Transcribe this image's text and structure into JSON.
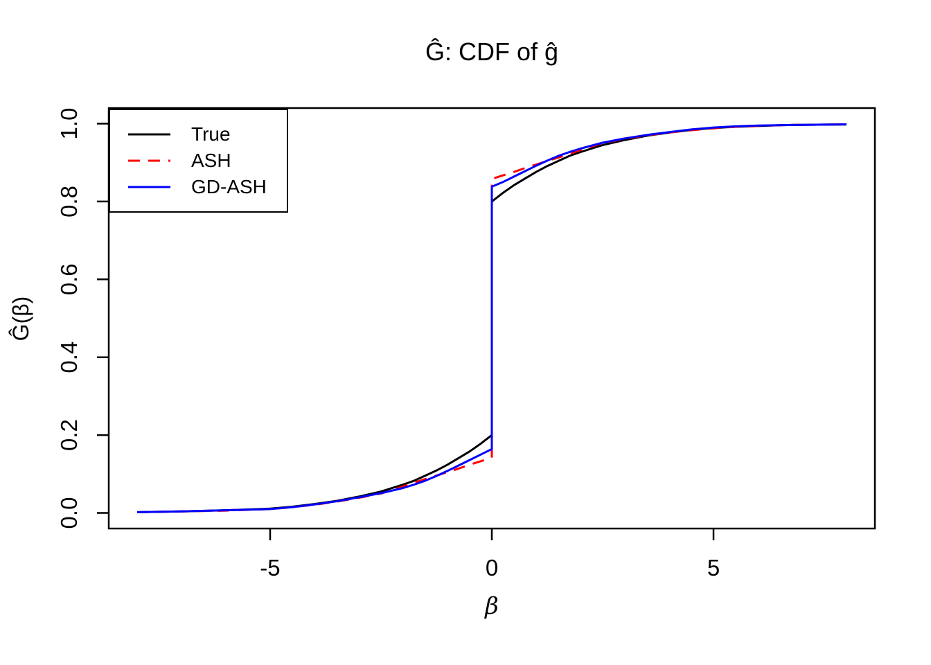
{
  "title": "Ĝ: CDF of ĝ",
  "xlabel": "β",
  "ylabel": "Ĝ(β)",
  "axes": {
    "x_ticks": [
      {
        "value": -5,
        "label": "-5"
      },
      {
        "value": 0,
        "label": "0"
      },
      {
        "value": 5,
        "label": "5"
      }
    ],
    "y_ticks": [
      {
        "value": 0.0,
        "label": "0.0"
      },
      {
        "value": 0.2,
        "label": "0.2"
      },
      {
        "value": 0.4,
        "label": "0.4"
      },
      {
        "value": 0.6,
        "label": "0.6"
      },
      {
        "value": 0.8,
        "label": "0.8"
      },
      {
        "value": 1.0,
        "label": "1.0"
      }
    ]
  },
  "legend": {
    "position": "topleft",
    "items": [
      {
        "label": "True",
        "color": "#000000",
        "style": "solid"
      },
      {
        "label": "ASH",
        "color": "#FF0000",
        "style": "dashed"
      },
      {
        "label": "GD-ASH",
        "color": "#0000FF",
        "style": "solid"
      }
    ]
  },
  "chart_data": {
    "type": "line",
    "title": "Ĝ: CDF of ĝ",
    "xlabel": "β",
    "ylabel": "Ĝ(β)",
    "xlim": [
      -8.64,
      8.64
    ],
    "ylim": [
      -0.04,
      1.04
    ],
    "x_data_range": [
      -8,
      8
    ],
    "grid": false,
    "description": "Three CDF curves with a jump discontinuity (point mass) at beta = 0",
    "jump_at_zero": {
      "True": {
        "left": 0.2,
        "right": 0.8
      },
      "ASH": {
        "left": 0.142,
        "right": 0.858
      },
      "GD-ASH": {
        "left": 0.164,
        "right": 0.838
      }
    },
    "series": [
      {
        "name": "True",
        "color": "#000000",
        "dash": "solid",
        "points": [
          [
            -8,
            0.002
          ],
          [
            -7,
            0.004
          ],
          [
            -6,
            0.007
          ],
          [
            -5,
            0.011
          ],
          [
            -4.5,
            0.016
          ],
          [
            -4,
            0.023
          ],
          [
            -3.5,
            0.031
          ],
          [
            -3,
            0.042
          ],
          [
            -2.5,
            0.055
          ],
          [
            -2,
            0.073
          ],
          [
            -1.75,
            0.083
          ],
          [
            -1.5,
            0.096
          ],
          [
            -1.25,
            0.109
          ],
          [
            -1,
            0.124
          ],
          [
            -0.75,
            0.141
          ],
          [
            -0.5,
            0.158
          ],
          [
            -0.25,
            0.178
          ],
          [
            0,
            0.2
          ],
          [
            0,
            0.8
          ],
          [
            0.25,
            0.822
          ],
          [
            0.5,
            0.842
          ],
          [
            0.75,
            0.859
          ],
          [
            1,
            0.876
          ],
          [
            1.25,
            0.891
          ],
          [
            1.5,
            0.904
          ],
          [
            1.75,
            0.917
          ],
          [
            2,
            0.927
          ],
          [
            2.5,
            0.945
          ],
          [
            3,
            0.958
          ],
          [
            3.5,
            0.969
          ],
          [
            4,
            0.977
          ],
          [
            4.5,
            0.984
          ],
          [
            5,
            0.989
          ],
          [
            5.5,
            0.992
          ],
          [
            6,
            0.994
          ],
          [
            6.5,
            0.996
          ],
          [
            7,
            0.997
          ],
          [
            7.5,
            0.9975
          ],
          [
            8,
            0.998
          ]
        ]
      },
      {
        "name": "ASH",
        "color": "#FF0000",
        "dash": "dashed",
        "points": [
          [
            -8,
            0.002
          ],
          [
            -7,
            0.004
          ],
          [
            -6,
            0.006
          ],
          [
            -5,
            0.01
          ],
          [
            -4.5,
            0.015
          ],
          [
            -4,
            0.021
          ],
          [
            -3.5,
            0.029
          ],
          [
            -3,
            0.039
          ],
          [
            -2.5,
            0.05
          ],
          [
            -2,
            0.068
          ],
          [
            -1.75,
            0.078
          ],
          [
            -1.5,
            0.087
          ],
          [
            -1.25,
            0.096
          ],
          [
            -1,
            0.105
          ],
          [
            -0.75,
            0.114
          ],
          [
            -0.5,
            0.124
          ],
          [
            -0.25,
            0.133
          ],
          [
            0,
            0.142
          ],
          [
            0,
            0.858
          ],
          [
            0.25,
            0.867
          ],
          [
            0.5,
            0.876
          ],
          [
            0.75,
            0.886
          ],
          [
            1,
            0.895
          ],
          [
            1.25,
            0.904
          ],
          [
            1.5,
            0.913
          ],
          [
            1.75,
            0.922
          ],
          [
            2,
            0.932
          ],
          [
            2.5,
            0.95
          ],
          [
            3,
            0.961
          ],
          [
            3.5,
            0.97
          ],
          [
            4,
            0.977
          ],
          [
            4.5,
            0.983
          ],
          [
            5,
            0.988
          ],
          [
            5.5,
            0.992
          ],
          [
            6,
            0.994
          ],
          [
            6.5,
            0.996
          ],
          [
            7,
            0.997
          ],
          [
            7.5,
            0.9975
          ],
          [
            8,
            0.998
          ]
        ]
      },
      {
        "name": "GD-ASH",
        "color": "#0000FF",
        "dash": "solid",
        "points": [
          [
            -8,
            0.002
          ],
          [
            -7,
            0.004
          ],
          [
            -6,
            0.007
          ],
          [
            -5,
            0.01
          ],
          [
            -4.5,
            0.015
          ],
          [
            -4,
            0.022
          ],
          [
            -3.5,
            0.03
          ],
          [
            -3,
            0.04
          ],
          [
            -2.5,
            0.051
          ],
          [
            -2,
            0.064
          ],
          [
            -1.75,
            0.073
          ],
          [
            -1.5,
            0.083
          ],
          [
            -1.25,
            0.095
          ],
          [
            -1,
            0.108
          ],
          [
            -0.75,
            0.122
          ],
          [
            -0.5,
            0.136
          ],
          [
            -0.25,
            0.15
          ],
          [
            0,
            0.164
          ],
          [
            0,
            0.838
          ],
          [
            0.25,
            0.85
          ],
          [
            0.5,
            0.864
          ],
          [
            0.75,
            0.878
          ],
          [
            1,
            0.892
          ],
          [
            1.25,
            0.905
          ],
          [
            1.5,
            0.917
          ],
          [
            1.75,
            0.927
          ],
          [
            2,
            0.936
          ],
          [
            2.5,
            0.951
          ],
          [
            3,
            0.962
          ],
          [
            3.5,
            0.971
          ],
          [
            4,
            0.978
          ],
          [
            4.5,
            0.985
          ],
          [
            5,
            0.99
          ],
          [
            5.5,
            0.993
          ],
          [
            6,
            0.995
          ],
          [
            6.5,
            0.996
          ],
          [
            7,
            0.997
          ],
          [
            7.5,
            0.9975
          ],
          [
            8,
            0.998
          ]
        ]
      }
    ]
  }
}
